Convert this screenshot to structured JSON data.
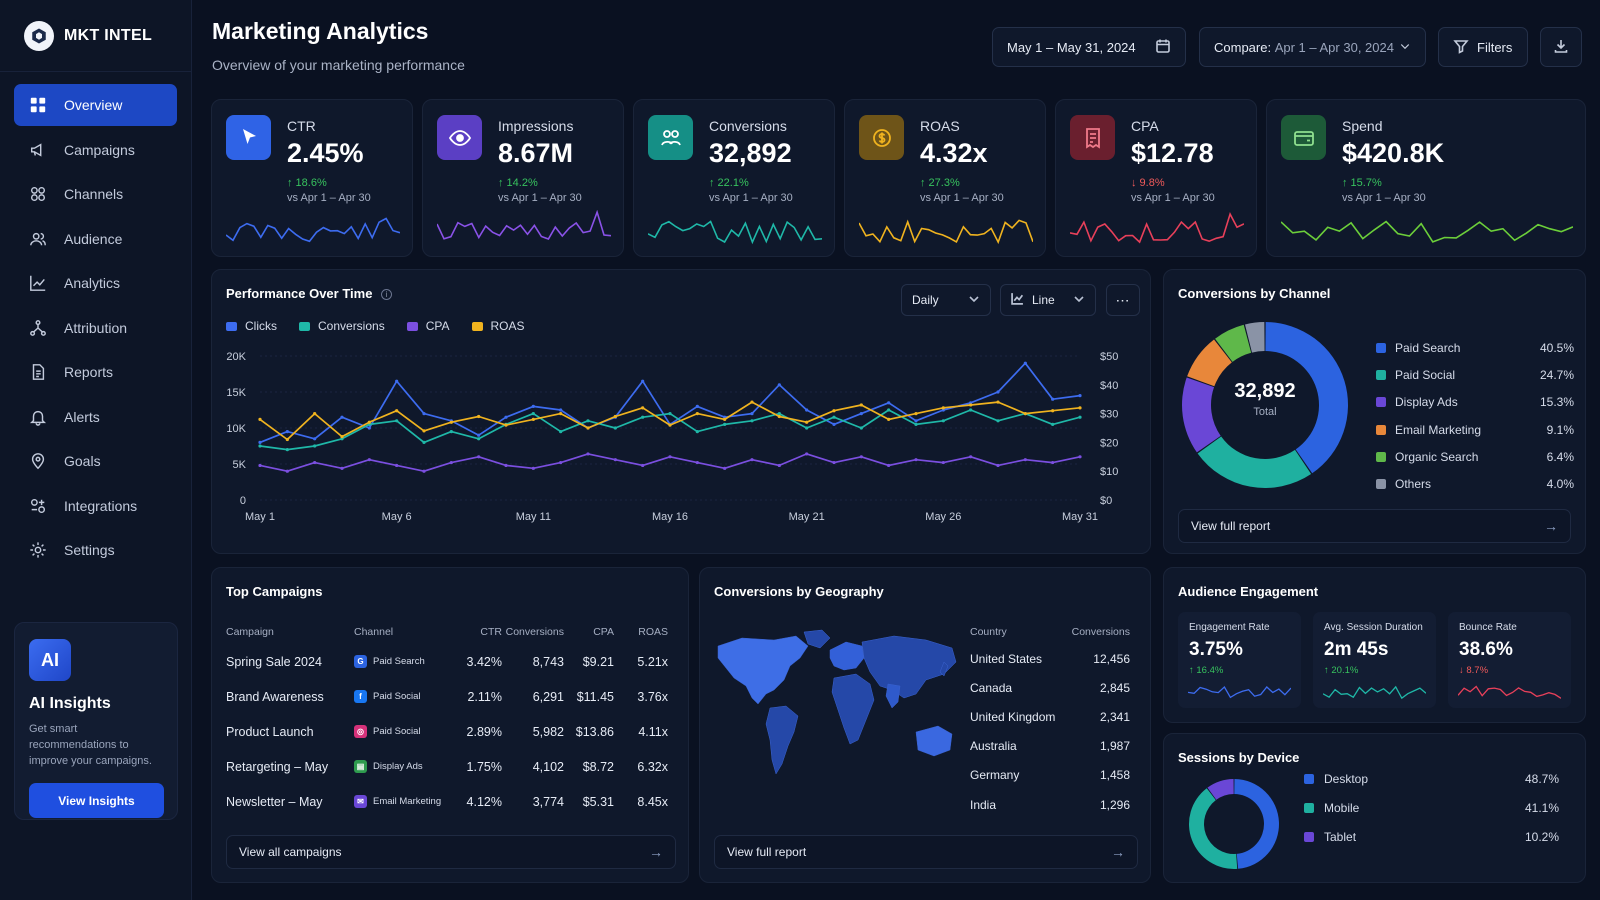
{
  "app": {
    "logo_text": "MKT INTEL"
  },
  "colors": {
    "accent": "#1d48c4",
    "clicks": "#3d6cf0",
    "conversions": "#1fb8a8",
    "cpa": "#7b4fe0",
    "roas": "#f0b31f",
    "up": "#37c25e",
    "down": "#f05a5a"
  },
  "sidebar": {
    "items": [
      {
        "label": "Overview",
        "icon": "grid-icon",
        "active": true
      },
      {
        "label": "Campaigns",
        "icon": "megaphone-icon"
      },
      {
        "label": "Channels",
        "icon": "channels-icon"
      },
      {
        "label": "Audience",
        "icon": "users-icon"
      },
      {
        "label": "Analytics",
        "icon": "chart-icon"
      },
      {
        "label": "Attribution",
        "icon": "attribution-icon"
      },
      {
        "label": "Reports",
        "icon": "document-icon"
      },
      {
        "label": "Alerts",
        "icon": "bell-icon"
      },
      {
        "label": "Goals",
        "icon": "target-icon"
      },
      {
        "label": "Integrations",
        "icon": "integrations-icon"
      },
      {
        "label": "Settings",
        "icon": "gear-icon"
      }
    ],
    "ai": {
      "badge": "AI",
      "title": "AI Insights",
      "description": "Get smart recommendations to improve your campaigns.",
      "button": "View Insights"
    }
  },
  "header": {
    "title": "Marketing Analytics",
    "subtitle": "Overview of your marketing performance",
    "date_range": "May 1 – May 31, 2024",
    "compare_label": "Compare:",
    "compare_value": "Apr 1 – Apr 30, 2024",
    "filters": "Filters"
  },
  "kpis": [
    {
      "label": "CTR",
      "value": "2.45%",
      "delta": "↑ 18.6%",
      "direction": "up",
      "vs": "vs Apr 1 – Apr 30",
      "icon": "cursor-icon",
      "color": "#2f63e6",
      "spark_color": "#3d6cf0"
    },
    {
      "label": "Impressions",
      "value": "8.67M",
      "delta": "↑ 14.2%",
      "direction": "up",
      "vs": "vs Apr 1 – Apr 30",
      "icon": "eye-icon",
      "color": "#5b3fc4",
      "spark_color": "#8a52e8"
    },
    {
      "label": "Conversions",
      "value": "32,892",
      "delta": "↑ 22.1%",
      "direction": "up",
      "vs": "vs Apr 1 – Apr 30",
      "icon": "people-icon",
      "color": "#158f86",
      "spark_color": "#1fb8a8"
    },
    {
      "label": "ROAS",
      "value": "4.32x",
      "delta": "↑ 27.3%",
      "direction": "up",
      "vs": "vs Apr 1 – Apr 30",
      "icon": "coin-icon",
      "color": "#6e5418",
      "spark_color": "#f0b31f"
    },
    {
      "label": "CPA",
      "value": "$12.78",
      "delta": "↓ 9.8%",
      "direction": "down",
      "vs": "vs Apr 1 – Apr 30",
      "icon": "receipt-icon",
      "color": "#6a1f2e",
      "spark_color": "#e8405a"
    },
    {
      "label": "Spend",
      "value": "$420.8K",
      "delta": "↑ 15.7%",
      "direction": "up",
      "vs": "vs Apr 1 – Apr 30",
      "icon": "wallet-icon",
      "color": "#1d5a38",
      "spark_color": "#6ccf3a"
    }
  ],
  "performance": {
    "title": "Performance Over Time",
    "granularity": "Daily",
    "chart_type_label": "Line",
    "legend": [
      "Clicks",
      "Conversions",
      "CPA",
      "ROAS"
    ]
  },
  "chart_data": {
    "type": "line",
    "title": "Performance Over Time",
    "x": [
      "May 1",
      "May 2",
      "May 3",
      "May 4",
      "May 5",
      "May 6",
      "May 7",
      "May 8",
      "May 9",
      "May 10",
      "May 11",
      "May 12",
      "May 13",
      "May 14",
      "May 15",
      "May 16",
      "May 17",
      "May 18",
      "May 19",
      "May 20",
      "May 21",
      "May 22",
      "May 23",
      "May 24",
      "May 25",
      "May 26",
      "May 27",
      "May 28",
      "May 29",
      "May 30",
      "May 31"
    ],
    "x_ticks": [
      "May 1",
      "May 6",
      "May 11",
      "May 16",
      "May 21",
      "May 26",
      "May 31"
    ],
    "y_left": {
      "ticks": [
        "0",
        "5K",
        "10K",
        "15K",
        "20K"
      ],
      "range": [
        0,
        20000
      ]
    },
    "y_right": {
      "ticks": [
        "$0",
        "$10",
        "$20",
        "$30",
        "$40",
        "$50"
      ],
      "range": [
        0,
        50
      ]
    },
    "series": [
      {
        "name": "Clicks",
        "axis": "left",
        "values": [
          8000,
          9500,
          8500,
          11500,
          10000,
          16500,
          12000,
          11000,
          9000,
          11500,
          13000,
          12500,
          10000,
          11500,
          16500,
          10500,
          13000,
          11500,
          12000,
          16000,
          12500,
          10500,
          12000,
          13500,
          11000,
          12500,
          13500,
          15000,
          19000,
          14000,
          14500
        ]
      },
      {
        "name": "Conversions",
        "axis": "left",
        "values": [
          7500,
          7000,
          7500,
          8500,
          10500,
          11000,
          8000,
          9500,
          8500,
          10500,
          12000,
          9500,
          11000,
          10000,
          11500,
          12000,
          9500,
          10500,
          11000,
          12000,
          10000,
          11500,
          10000,
          12500,
          10500,
          11000,
          12500,
          11000,
          12000,
          10500,
          11500
        ]
      },
      {
        "name": "CPA",
        "axis": "right",
        "values": [
          12,
          10,
          13,
          11,
          14,
          12,
          10,
          13,
          15,
          12,
          11,
          13,
          16,
          14,
          12,
          15,
          13,
          11,
          14,
          12,
          16,
          13,
          15,
          12,
          14,
          13,
          15,
          12,
          14,
          13,
          15
        ]
      },
      {
        "name": "ROAS",
        "axis": "right",
        "values": [
          28,
          21,
          30,
          22,
          27,
          31,
          24,
          27,
          29,
          26,
          28,
          30,
          25,
          29,
          32,
          26,
          30,
          28,
          34,
          29,
          27,
          31,
          33,
          28,
          30,
          32,
          33,
          34,
          30,
          31,
          32
        ]
      }
    ]
  },
  "channels": {
    "title": "Conversions by Channel",
    "total_value": "32,892",
    "total_label": "Total",
    "items": [
      {
        "name": "Paid Search",
        "pct": "40.5%",
        "value": 40.5,
        "color": "#2c63e0"
      },
      {
        "name": "Paid Social",
        "pct": "24.7%",
        "value": 24.7,
        "color": "#1fb0a0"
      },
      {
        "name": "Display Ads",
        "pct": "15.3%",
        "value": 15.3,
        "color": "#6a47d6"
      },
      {
        "name": "Email Marketing",
        "pct": "9.1%",
        "value": 9.1,
        "color": "#e8873a"
      },
      {
        "name": "Organic Search",
        "pct": "6.4%",
        "value": 6.4,
        "color": "#5fb84a"
      },
      {
        "name": "Others",
        "pct": "4.0%",
        "value": 4.0,
        "color": "#8a93a6"
      }
    ],
    "footer": "View full report"
  },
  "campaigns": {
    "title": "Top Campaigns",
    "columns": [
      "Campaign",
      "Channel",
      "CTR",
      "Conversions",
      "CPA",
      "ROAS"
    ],
    "rows": [
      {
        "campaign": "Spring Sale 2024",
        "channel": "Paid Search",
        "ch_color": "#2c63e0",
        "ch_glyph": "G",
        "ctr": "3.42%",
        "conversions": "8,743",
        "cpa": "$9.21",
        "roas": "5.21x"
      },
      {
        "campaign": "Brand Awareness",
        "channel": "Paid Social",
        "ch_color": "#1877f2",
        "ch_glyph": "f",
        "ctr": "2.11%",
        "conversions": "6,291",
        "cpa": "$11.45",
        "roas": "3.76x"
      },
      {
        "campaign": "Product Launch",
        "channel": "Paid Social",
        "ch_color": "#d6317a",
        "ch_glyph": "◎",
        "ctr": "2.89%",
        "conversions": "5,982",
        "cpa": "$13.86",
        "roas": "4.11x"
      },
      {
        "campaign": "Retargeting – May",
        "channel": "Display Ads",
        "ch_color": "#2e9b4e",
        "ch_glyph": "▤",
        "ctr": "1.75%",
        "conversions": "4,102",
        "cpa": "$8.72",
        "roas": "6.32x"
      },
      {
        "campaign": "Newsletter – May",
        "channel": "Email Marketing",
        "ch_color": "#6a47d6",
        "ch_glyph": "✉",
        "ctr": "4.12%",
        "conversions": "3,774",
        "cpa": "$5.31",
        "roas": "8.45x"
      }
    ],
    "footer": "View all campaigns"
  },
  "geography": {
    "title": "Conversions by Geography",
    "columns": [
      "Country",
      "Conversions"
    ],
    "rows": [
      {
        "country": "United States",
        "conversions": "12,456"
      },
      {
        "country": "Canada",
        "conversions": "2,845"
      },
      {
        "country": "United Kingdom",
        "conversions": "2,341"
      },
      {
        "country": "Australia",
        "conversions": "1,987"
      },
      {
        "country": "Germany",
        "conversions": "1,458"
      },
      {
        "country": "India",
        "conversions": "1,296"
      }
    ],
    "footer": "View full report"
  },
  "engagement": {
    "title": "Audience Engagement",
    "cards": [
      {
        "label": "Engagement Rate",
        "value": "3.75%",
        "delta": "↑ 16.4%",
        "direction": "up",
        "spark_color": "#3d6cf0"
      },
      {
        "label": "Avg. Session Duration",
        "value": "2m 45s",
        "delta": "↑ 20.1%",
        "direction": "up",
        "spark_color": "#1fb8a8"
      },
      {
        "label": "Bounce Rate",
        "value": "38.6%",
        "delta": "↓ 8.7%",
        "direction": "down",
        "spark_color": "#e8405a"
      }
    ]
  },
  "devices": {
    "title": "Sessions by Device",
    "items": [
      {
        "name": "Desktop",
        "pct": "48.7%",
        "value": 48.7,
        "color": "#2c63e0"
      },
      {
        "name": "Mobile",
        "pct": "41.1%",
        "value": 41.1,
        "color": "#1fb0a0"
      },
      {
        "name": "Tablet",
        "pct": "10.2%",
        "value": 10.2,
        "color": "#6a47d6"
      }
    ]
  }
}
